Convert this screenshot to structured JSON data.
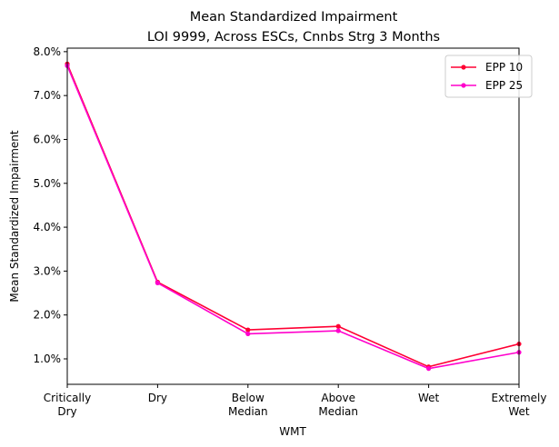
{
  "chart_data": {
    "type": "line",
    "title": "Mean Standardized Impairment",
    "subtitle": "LOI 9999, Across ESCs, Cnnbs Strg 3 Months",
    "xlabel": "WMT",
    "ylabel": "Mean Standardized Impairment",
    "categories": [
      [
        "Critically",
        "Dry"
      ],
      [
        "Dry"
      ],
      [
        "Below",
        "Median"
      ],
      [
        "Above",
        "Median"
      ],
      [
        "Wet"
      ],
      [
        "Extremely",
        "Wet"
      ]
    ],
    "ylim": [
      0.0042,
      0.0808
    ],
    "yticks": [
      0.01,
      0.02,
      0.03,
      0.04,
      0.05,
      0.06,
      0.07,
      0.08
    ],
    "ytick_labels": [
      "1.0%",
      "2.0%",
      "3.0%",
      "4.0%",
      "5.0%",
      "6.0%",
      "7.0%",
      "8.0%"
    ],
    "grid": false,
    "legend_position": "top-right",
    "series": [
      {
        "name": "EPP 10",
        "color": "#ff0033",
        "values": [
          0.0772,
          0.0275,
          0.0166,
          0.0174,
          0.0082,
          0.0134
        ]
      },
      {
        "name": "EPP 25",
        "color": "#ff00cc",
        "values": [
          0.0768,
          0.0273,
          0.0157,
          0.0164,
          0.0078,
          0.0115
        ]
      }
    ]
  }
}
